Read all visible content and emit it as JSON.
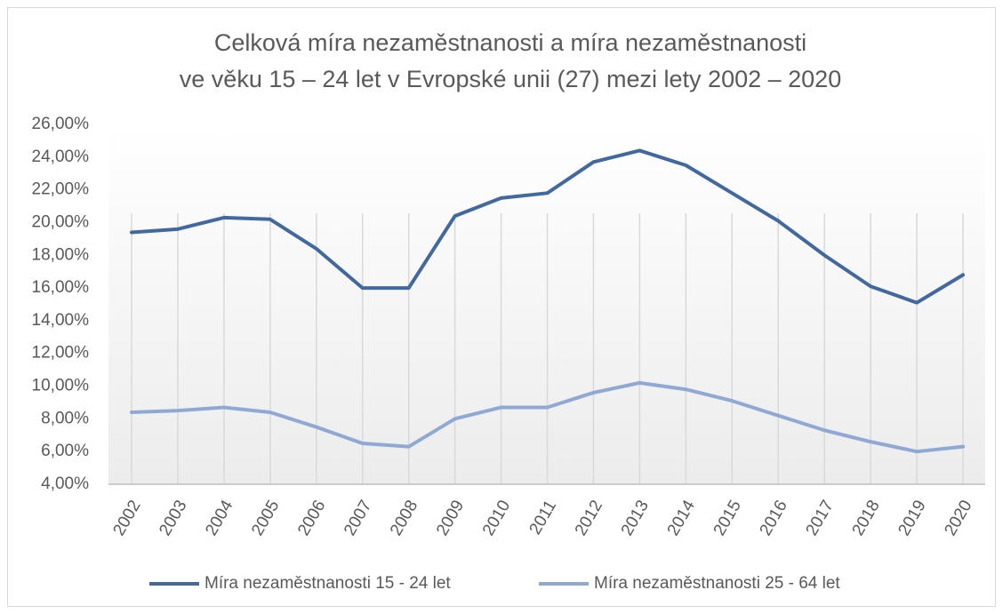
{
  "chart_data": {
    "type": "line",
    "title": [
      "Celková míra nezaměstnanosti a míra nezaměstnanosti",
      "ve věku 15 – 24 let v Evropské unii (27) mezi lety 2002 – 2020"
    ],
    "categories": [
      "2002",
      "2003",
      "2004",
      "2005",
      "2006",
      "2007",
      "2008",
      "2009",
      "2010",
      "2011",
      "2012",
      "2013",
      "2014",
      "2015",
      "2016",
      "2017",
      "2018",
      "2019",
      "2020"
    ],
    "series": [
      {
        "name": "Míra nezaměstnanosti 15 - 24 let",
        "color": "#41699f",
        "values": [
          19.4,
          19.6,
          20.3,
          20.2,
          18.4,
          16.0,
          16.0,
          20.4,
          21.5,
          21.8,
          23.7,
          24.4,
          23.5,
          21.8,
          20.1,
          18.0,
          16.1,
          15.1,
          16.8
        ]
      },
      {
        "name": "Míra nezaměstnanosti 25 - 64 let",
        "color": "#8fa9d4",
        "values": [
          8.4,
          8.5,
          8.7,
          8.4,
          7.5,
          6.5,
          6.3,
          8.0,
          8.7,
          8.7,
          9.6,
          10.2,
          9.8,
          9.1,
          8.2,
          7.3,
          6.6,
          6.0,
          6.3
        ]
      }
    ],
    "ylim": [
      4,
      26
    ],
    "yticks": [
      {
        "value": 4,
        "label": "4,00%"
      },
      {
        "value": 6,
        "label": "6,00%"
      },
      {
        "value": 8,
        "label": "8,00%"
      },
      {
        "value": 10,
        "label": "10,00%"
      },
      {
        "value": 12,
        "label": "12,00%"
      },
      {
        "value": 14,
        "label": "14,00%"
      },
      {
        "value": 16,
        "label": "16,00%"
      },
      {
        "value": 18,
        "label": "18,00%"
      },
      {
        "value": 20,
        "label": "20,00%"
      },
      {
        "value": 22,
        "label": "22,00%"
      },
      {
        "value": 24,
        "label": "24,00%"
      },
      {
        "value": 26,
        "label": "26,00%"
      }
    ],
    "vertical_grid": true,
    "legend": "bottom"
  }
}
